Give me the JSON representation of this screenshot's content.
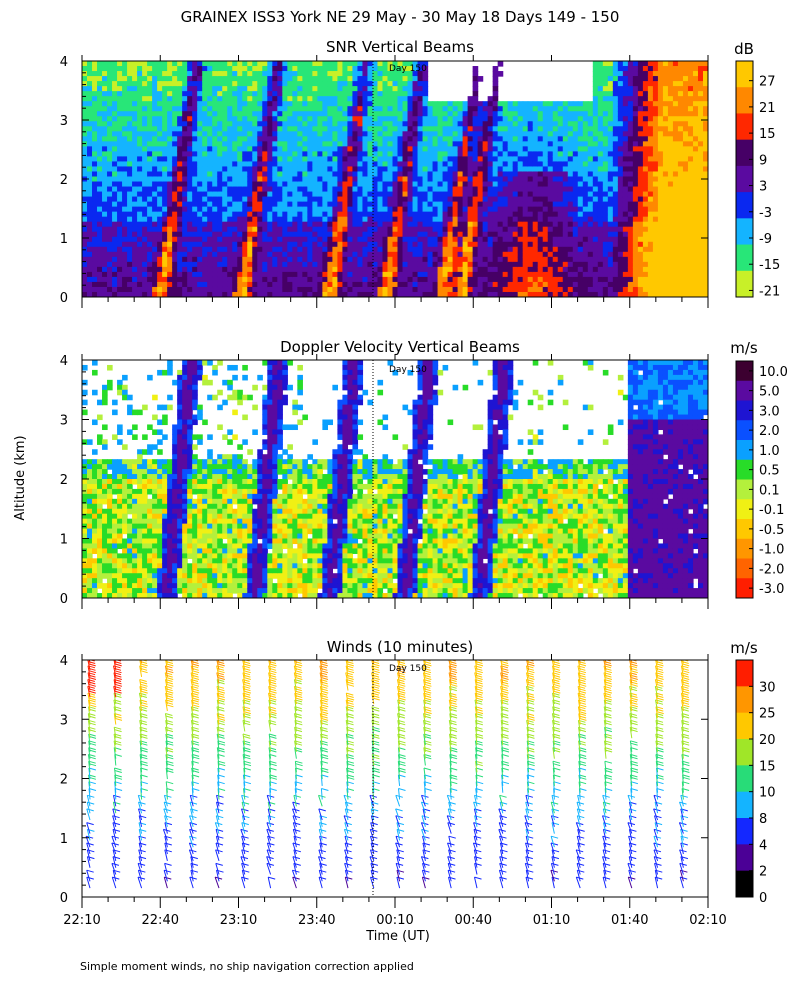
{
  "figure": {
    "title": "GRAINEX ISS3 York NE  29 May - 30 May 18 Days 149 - 150",
    "ylabel": "Altitude (km)",
    "xlabel": "Time (UT)",
    "footnote": "Simple moment winds, no ship navigation correction applied",
    "day_marker": "Day 150"
  },
  "chart_data": [
    {
      "type": "heatmap",
      "title": "SNR Vertical Beams",
      "colorbar_unit": "dB",
      "colorbar_ticks": [
        "27",
        "21",
        "15",
        "9",
        "3",
        "-3",
        "-9",
        "-15",
        "-21"
      ],
      "colorbar_colors": [
        "#ffc800",
        "#ff8800",
        "#ff2800",
        "#460066",
        "#5a0aa0",
        "#0a28f0",
        "#14b4ff",
        "#28e678",
        "#c8f028"
      ],
      "colorbar_values": [
        30,
        24,
        18,
        12,
        6,
        0,
        -6,
        -12,
        -18,
        -24
      ],
      "yticks": [
        "0",
        "1",
        "2",
        "3",
        "4"
      ],
      "ylim": [
        0,
        4
      ],
      "day_marker_time": "00:00"
    },
    {
      "type": "heatmap",
      "title": "Doppler Velocity Vertical Beams",
      "colorbar_unit": "m/s",
      "colorbar_ticks": [
        "10.0",
        "5.0",
        "3.0",
        "2.0",
        "1.0",
        "0.5",
        "0.1",
        "-0.1",
        "-0.5",
        "-1.0",
        "-2.0",
        "-3.0"
      ],
      "colorbar_colors": [
        "#3c0030",
        "#5a0aa0",
        "#1e14d2",
        "#0a50ff",
        "#0aa0ff",
        "#28dc28",
        "#b4f03c",
        "#f0f014",
        "#ffc800",
        "#ff9600",
        "#ff6400",
        "#ff1e00"
      ],
      "yticks": [
        "0",
        "1",
        "2",
        "3",
        "4"
      ],
      "ylim": [
        0,
        4
      ],
      "day_marker_time": "00:00"
    },
    {
      "type": "scatter",
      "title": "Winds (10 minutes)",
      "colorbar_unit": "m/s",
      "colorbar_ticks": [
        "30",
        "25",
        "20",
        "15",
        "10",
        "8",
        "4",
        "2",
        "0"
      ],
      "colorbar_colors": [
        "#ff1e00",
        "#ff9600",
        "#ffc800",
        "#a0e628",
        "#28dc78",
        "#14b4ff",
        "#1428ff",
        "#4b0096",
        "#000000"
      ],
      "yticks": [
        "0",
        "1",
        "2",
        "3",
        "4"
      ],
      "ylim": [
        0,
        4
      ],
      "xticks": [
        "22:10",
        "22:40",
        "23:10",
        "23:40",
        "00:10",
        "00:40",
        "01:10",
        "01:40",
        "02:10"
      ],
      "xlim": [
        "22:10",
        "02:10"
      ],
      "day_marker_time": "00:00"
    }
  ]
}
